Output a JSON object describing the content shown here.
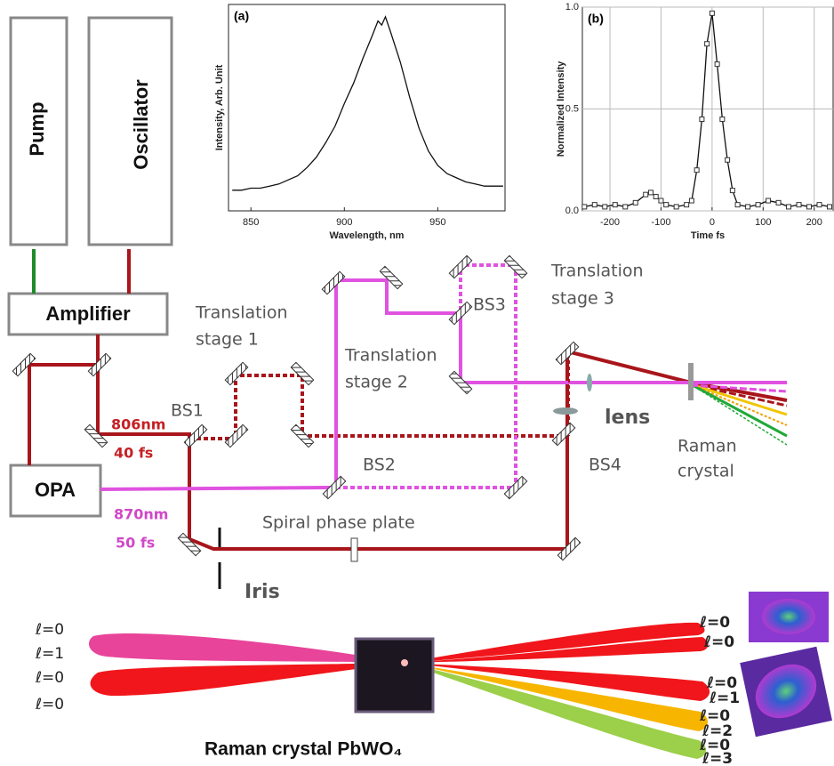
{
  "panel_a": {
    "label": "(a)",
    "x_label": "Wavelength, nm",
    "y_label": "Intensity, Arb. Unit",
    "xlim": [
      838,
      986
    ],
    "ylim": [
      0,
      1
    ],
    "xticks": [
      850,
      900,
      950
    ],
    "x": [
      840,
      845,
      850,
      855,
      860,
      865,
      870,
      875,
      880,
      885,
      890,
      895,
      900,
      905,
      910,
      915,
      918,
      920,
      922,
      925,
      930,
      935,
      940,
      945,
      950,
      955,
      960,
      965,
      970,
      975,
      980,
      985
    ],
    "values": [
      0.1,
      0.1,
      0.11,
      0.11,
      0.12,
      0.13,
      0.15,
      0.17,
      0.21,
      0.26,
      0.33,
      0.41,
      0.52,
      0.62,
      0.74,
      0.85,
      0.92,
      0.9,
      0.94,
      0.86,
      0.72,
      0.55,
      0.4,
      0.29,
      0.22,
      0.18,
      0.16,
      0.14,
      0.13,
      0.12,
      0.12,
      0.12
    ]
  },
  "panel_b": {
    "label": "(b)",
    "x_label": "Time fs",
    "y_label": "Normalized Intensity",
    "xlim": [
      -254,
      237
    ],
    "ylim": [
      0,
      1
    ],
    "xticks": [
      -200,
      -100,
      0,
      100,
      200
    ],
    "yticks": [
      {
        "value": 0,
        "label": "0.0"
      },
      0.5,
      {
        "value": 1,
        "label": "1.0"
      }
    ],
    "grid": true,
    "x": [
      -250,
      -230,
      -210,
      -190,
      -170,
      -150,
      -130,
      -120,
      -110,
      -100,
      -90,
      -70,
      -50,
      -40,
      -30,
      -20,
      -10,
      0,
      10,
      20,
      30,
      40,
      50,
      70,
      90,
      110,
      130,
      150,
      170,
      190,
      210,
      230
    ],
    "values": [
      0.02,
      0.03,
      0.02,
      0.03,
      0.02,
      0.04,
      0.08,
      0.09,
      0.07,
      0.05,
      0.03,
      0.02,
      0.03,
      0.05,
      0.2,
      0.45,
      0.82,
      0.97,
      0.72,
      0.45,
      0.25,
      0.1,
      0.03,
      0.02,
      0.03,
      0.05,
      0.04,
      0.02,
      0.03,
      0.02,
      0.03,
      0.02
    ]
  },
  "blocks": {
    "pump": "Pump",
    "oscillator": "Oscillator",
    "amplifier": "Amplifier",
    "opa": "OPA"
  },
  "setup_labels": {
    "pump_wavelength": "806nm",
    "pump_duration": "40 fs",
    "opa_wavelength": "870nm",
    "opa_duration": "50 fs",
    "bs1": "BS1",
    "bs2": "BS2",
    "bs3": "BS3",
    "bs4": "BS4",
    "stage1": [
      "Translation",
      "stage 1"
    ],
    "stage2": [
      "Translation",
      "stage 2"
    ],
    "stage3": [
      "Translation",
      "stage 3"
    ],
    "spiral": "Spiral phase plate",
    "iris": "Iris",
    "lens": "lens",
    "crystal": [
      "Raman",
      "crystal"
    ]
  },
  "output": {
    "title": "Raman crystal PbWO₄",
    "input_modes": [
      "ℓ=0",
      "ℓ=1",
      "ℓ=0",
      "ℓ=0"
    ],
    "output_modes": [
      "ℓ=0",
      "ℓ=0",
      "ℓ=0",
      "ℓ=1",
      "ℓ=0",
      "ℓ=2",
      "ℓ=0",
      "ℓ=3"
    ]
  }
}
